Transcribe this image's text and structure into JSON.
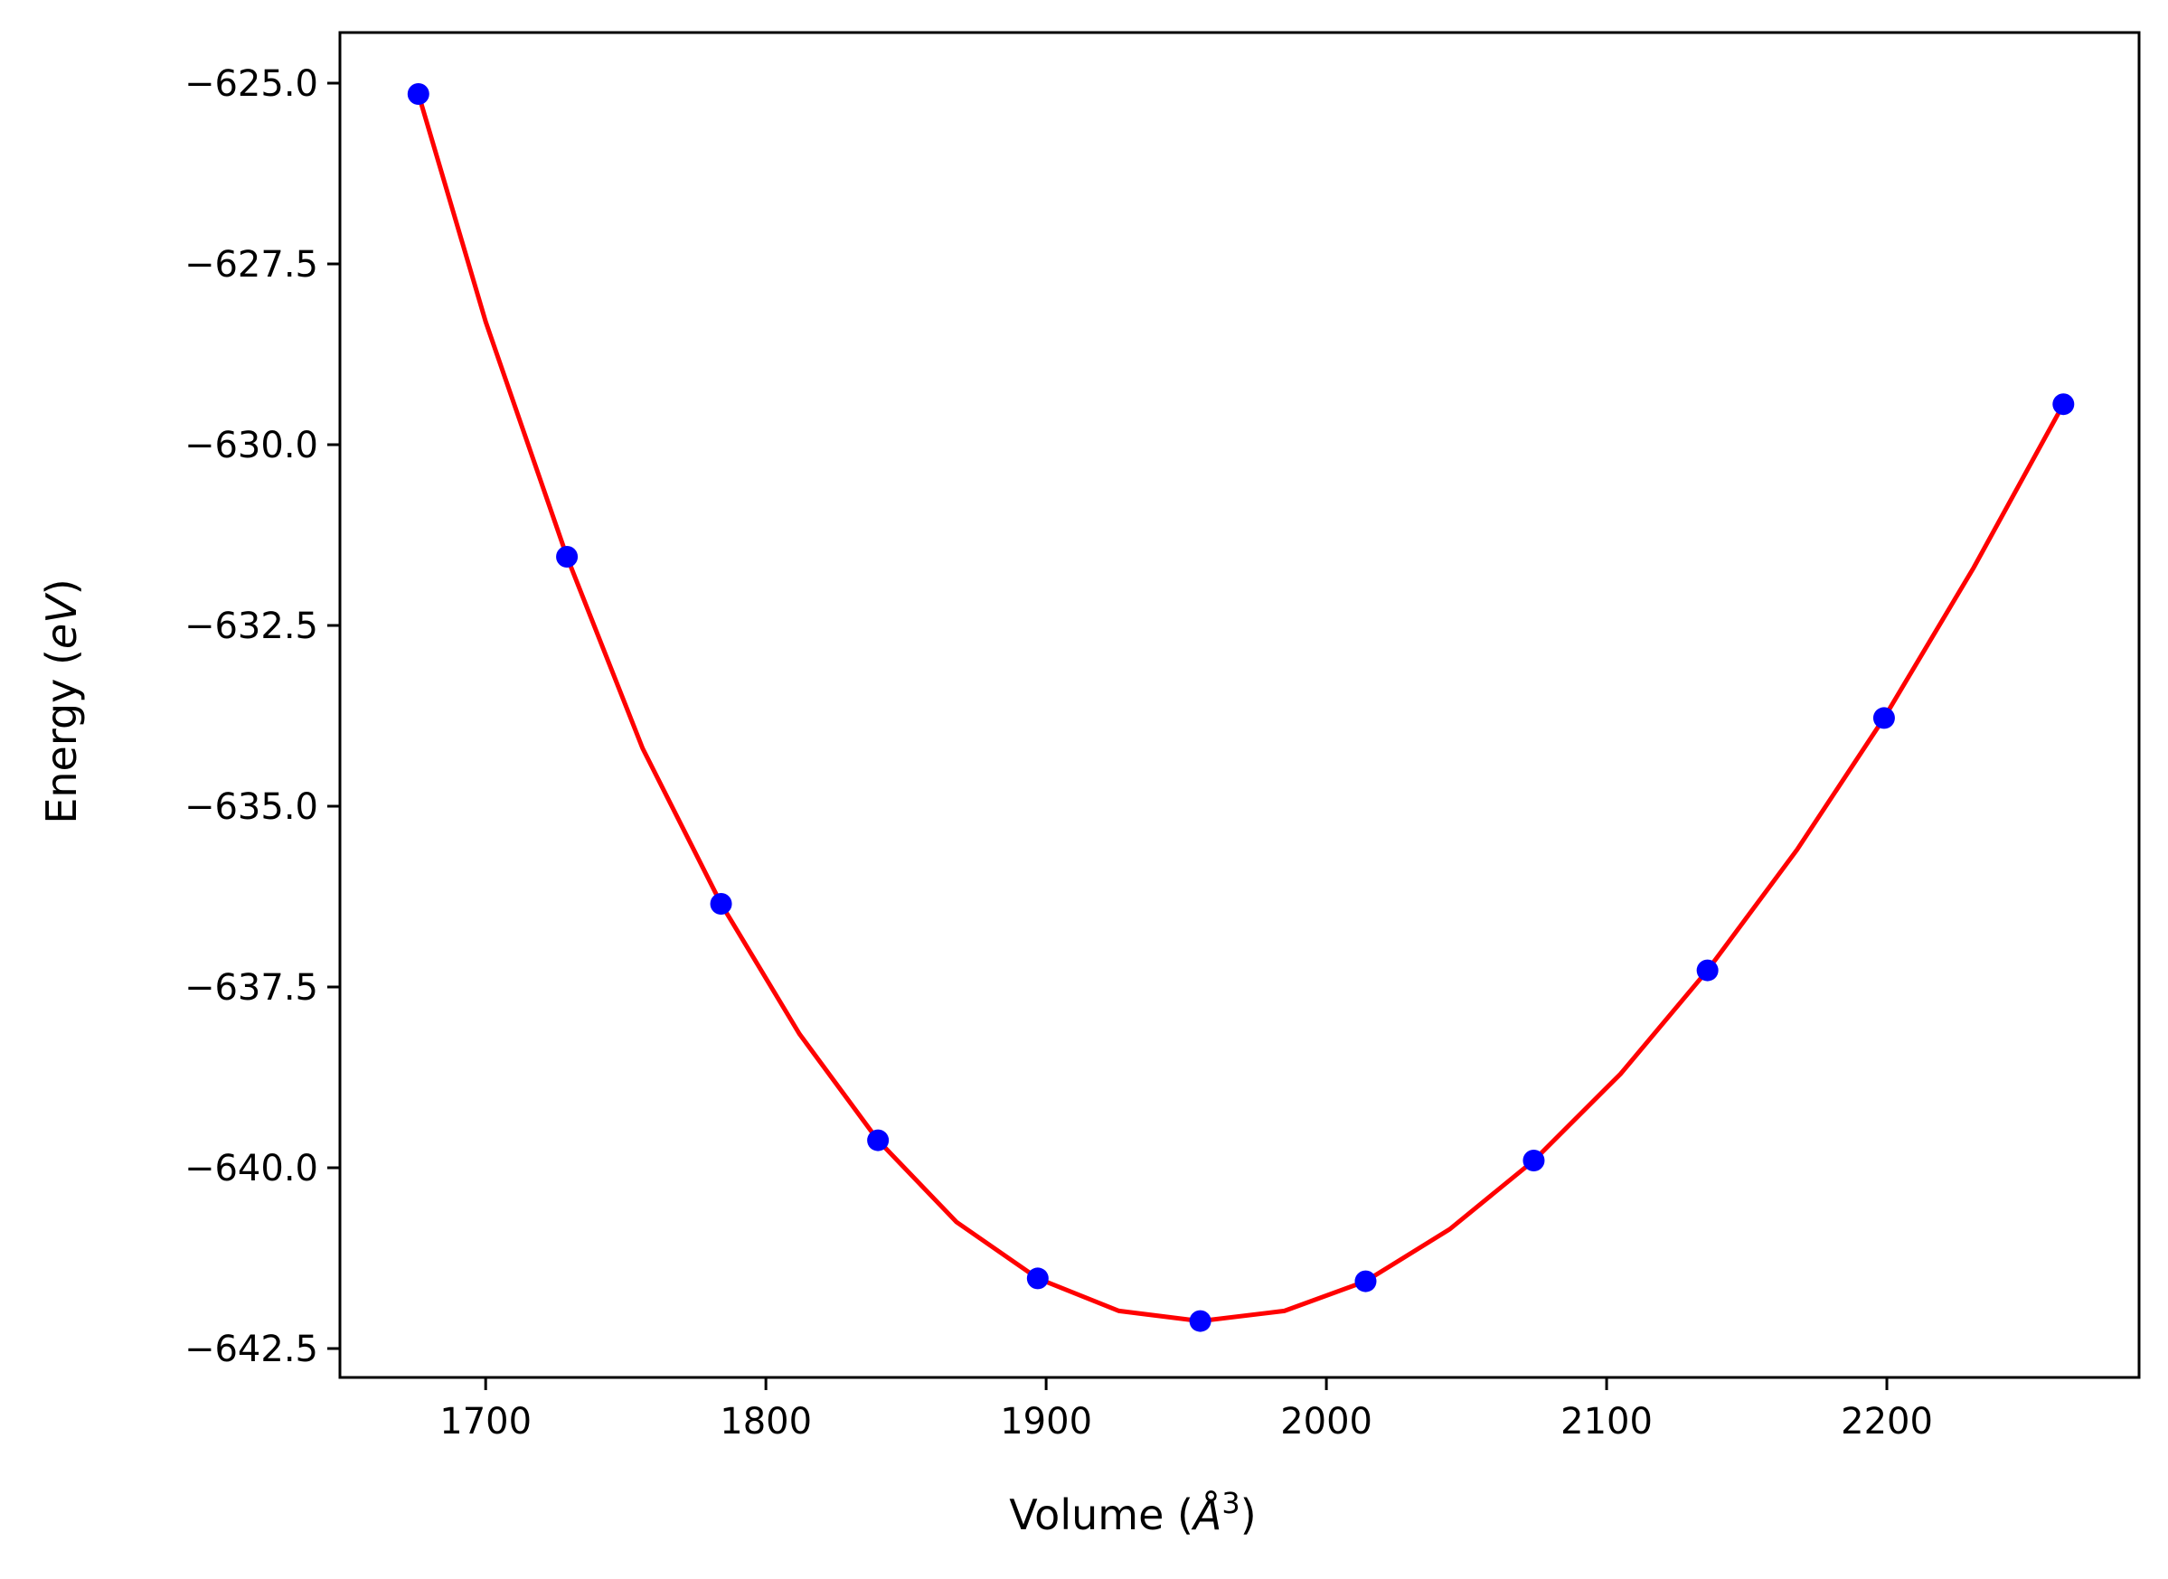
{
  "chart_data": {
    "type": "scatter",
    "xlabel_main": "Volume (",
    "xlabel_sym": "Å",
    "xlabel_sup": "3",
    "xlabel_end": ")",
    "ylabel_main": "Energy (",
    "ylabel_ital": "eV",
    "ylabel_end": ")",
    "xlim": [
      1648,
      2290
    ],
    "ylim": [
      -642.9,
      -624.3
    ],
    "xticks": [
      1700,
      1800,
      1900,
      2000,
      2100,
      2200
    ],
    "xtick_labels": [
      "1700",
      "1800",
      "1900",
      "2000",
      "2100",
      "2200"
    ],
    "yticks": [
      -625.0,
      -627.5,
      -630.0,
      -632.5,
      -635.0,
      -637.5,
      -640.0,
      -642.5
    ],
    "ytick_labels": [
      "−625.0",
      "−627.5",
      "−630.0",
      "−632.5",
      "−635.0",
      "−637.5",
      "−640.0",
      "−642.5"
    ],
    "grid": false,
    "series": [
      {
        "kind": "points",
        "color": "#0000ff",
        "x": [
          1676,
          1729,
          1784,
          1840,
          1897,
          1955,
          2014,
          2074,
          2136,
          2199,
          2263
        ],
        "y": [
          -625.15,
          -631.55,
          -636.35,
          -639.62,
          -641.53,
          -642.12,
          -641.57,
          -639.9,
          -637.27,
          -633.78,
          -629.44
        ]
      },
      {
        "kind": "curve",
        "color": "#ff0000",
        "x": [
          1676,
          1700,
          1729,
          1756,
          1784,
          1812,
          1840,
          1868,
          1897,
          1926,
          1955,
          1985,
          2014,
          2044,
          2074,
          2105,
          2136,
          2168,
          2199,
          2231,
          2263
        ],
        "y": [
          -625.15,
          -628.3,
          -631.55,
          -634.2,
          -636.35,
          -638.15,
          -639.62,
          -640.75,
          -641.53,
          -641.98,
          -642.12,
          -641.98,
          -641.57,
          -640.85,
          -639.9,
          -638.7,
          -637.27,
          -635.6,
          -633.78,
          -631.7,
          -629.44
        ]
      }
    ]
  }
}
